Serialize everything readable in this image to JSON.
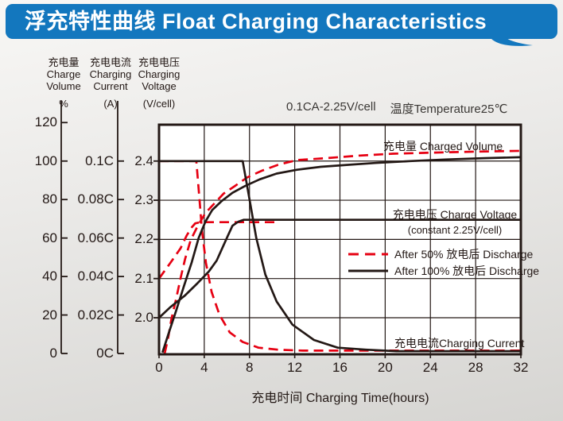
{
  "header": {
    "title": "浮充特性曲线 Float Charging Characteristics"
  },
  "colors": {
    "blue": "#1377be",
    "red": "#e60012",
    "black": "#231815",
    "plot_bg": "#ffffff"
  },
  "axes_panel": {
    "volume": {
      "lines": [
        "充电量",
        "Charge",
        "Volume"
      ],
      "unit": "%",
      "ticks": [
        "120",
        "100",
        "80",
        "60",
        "40",
        "20",
        "0"
      ]
    },
    "current": {
      "lines": [
        "充电电流",
        "Charging",
        "Current"
      ],
      "unit": "(A)",
      "ticks": [
        "0.1C",
        "0.08C",
        "0.06C",
        "0.04C",
        "0.02C",
        "0C"
      ]
    },
    "voltage": {
      "lines": [
        "充电电压",
        "Charging",
        "Voltage"
      ],
      "unit": "(V/cell)",
      "ticks": [
        "2.4",
        "2.3",
        "2.2",
        "2.1",
        "2.0"
      ]
    }
  },
  "chart_data": {
    "type": "line",
    "title": "浮充特性曲线 Float Charging Characteristics",
    "condition": "0.1CA-2.25V/cell",
    "temperature": "温度Temperature25℃",
    "xlabel": "充电时间 Charging Time(hours)",
    "xlim": [
      0,
      32
    ],
    "x_ticks": [
      0,
      4,
      8,
      12,
      16,
      20,
      24,
      28,
      32
    ],
    "grid": true,
    "axes": {
      "volume": {
        "label": "充电量 Charge Volume",
        "unit": "%",
        "range": [
          0,
          120
        ],
        "tick_step": 20
      },
      "current": {
        "label": "充电电流 Charging Current",
        "unit": "CA",
        "range": [
          0,
          0.1
        ],
        "tick_step": 0.02
      },
      "voltage": {
        "label": "充电电压 Charging Voltage",
        "unit": "V/cell",
        "range": [
          2.0,
          2.4
        ],
        "tick_step": 0.1
      }
    },
    "annotations": {
      "charged_volume": "充电量 Charged Volume",
      "charge_voltage": "充电电压 Charge Voltage",
      "charge_voltage_sub": "(constant 2.25V/cell)",
      "charging_current": "充电电流Charging Current"
    },
    "legend": [
      {
        "label": "After 50%  放电后 Discharge",
        "style": "dashed",
        "color": "#e60012"
      },
      {
        "label": "After 100%  放电后 Discharge",
        "style": "solid",
        "color": "#231815"
      }
    ],
    "series": [
      {
        "name": "charge-voltage-after-50",
        "axis": "voltage",
        "color": "#e60012",
        "dashed": true,
        "points": [
          [
            0,
            2.1
          ],
          [
            1,
            2.14
          ],
          [
            1.9,
            2.177
          ],
          [
            2.45,
            2.21
          ],
          [
            2.9,
            2.231
          ],
          [
            3.2,
            2.241
          ],
          [
            3.65,
            2.244
          ],
          [
            10.5,
            2.244
          ]
        ]
      },
      {
        "name": "charged-volume-after-50",
        "axis": "volume",
        "color": "#e60012",
        "dashed": true,
        "points": [
          [
            0.5,
            0
          ],
          [
            0.8,
            8
          ],
          [
            1.1,
            18
          ],
          [
            1.5,
            28
          ],
          [
            1.9,
            39
          ],
          [
            2.3,
            49
          ],
          [
            2.8,
            59
          ],
          [
            3.4,
            66
          ],
          [
            4.1,
            73
          ],
          [
            4.9,
            78
          ],
          [
            5.7,
            83
          ],
          [
            6.7,
            87
          ],
          [
            7.8,
            91.5
          ],
          [
            9.1,
            95
          ],
          [
            10.5,
            98
          ],
          [
            12.2,
            100.5
          ],
          [
            14.8,
            101.5
          ],
          [
            17.6,
            102.8
          ],
          [
            20.7,
            103.8
          ],
          [
            24.3,
            104.4
          ],
          [
            28,
            104.9
          ],
          [
            32,
            105.3
          ]
        ]
      },
      {
        "name": "charging-current-after-50",
        "axis": "current",
        "color": "#e60012",
        "dashed": true,
        "points": [
          [
            0,
            0.1
          ],
          [
            3.3,
            0.1
          ],
          [
            3.55,
            0.082
          ],
          [
            3.8,
            0.064
          ],
          [
            4.15,
            0.047
          ],
          [
            4.65,
            0.032
          ],
          [
            5.35,
            0.02
          ],
          [
            6.25,
            0.011
          ],
          [
            7.4,
            0.006
          ],
          [
            8.8,
            0.003
          ],
          [
            10.5,
            0.002
          ],
          [
            12.7,
            0.0015
          ],
          [
            32,
            0.0015
          ]
        ]
      },
      {
        "name": "charge-voltage-after-100",
        "axis": "voltage",
        "color": "#231815",
        "dashed": false,
        "points": [
          [
            0,
            2.0
          ],
          [
            1,
            2.027
          ],
          [
            2.3,
            2.057
          ],
          [
            3.4,
            2.088
          ],
          [
            4.4,
            2.118
          ],
          [
            5.1,
            2.146
          ],
          [
            5.6,
            2.178
          ],
          [
            6.1,
            2.21
          ],
          [
            6.5,
            2.235
          ],
          [
            7,
            2.245
          ],
          [
            7.5,
            2.25
          ],
          [
            32,
            2.25
          ]
        ]
      },
      {
        "name": "charged-volume-after-100",
        "axis": "volume",
        "color": "#231815",
        "dashed": false,
        "points": [
          [
            0.3,
            0.5
          ],
          [
            0.85,
            10.5
          ],
          [
            1.5,
            22
          ],
          [
            2.2,
            35
          ],
          [
            2.9,
            47.5
          ],
          [
            3.5,
            60
          ],
          [
            4.1,
            68.5
          ],
          [
            4.7,
            74.5
          ],
          [
            5.5,
            79
          ],
          [
            6.5,
            83.5
          ],
          [
            7.6,
            87
          ],
          [
            8.9,
            90.5
          ],
          [
            10.4,
            93.5
          ],
          [
            12.2,
            95.5
          ],
          [
            14.3,
            97
          ],
          [
            16.6,
            98
          ],
          [
            19.1,
            99
          ],
          [
            22.2,
            100
          ],
          [
            25.3,
            100.8
          ],
          [
            28.8,
            101.5
          ],
          [
            32,
            102
          ]
        ]
      },
      {
        "name": "charging-current-after-100",
        "axis": "current",
        "color": "#231815",
        "dashed": false,
        "points": [
          [
            0,
            0.1
          ],
          [
            7.4,
            0.1
          ],
          [
            8,
            0.08
          ],
          [
            8.6,
            0.06
          ],
          [
            9.4,
            0.041
          ],
          [
            10.4,
            0.027
          ],
          [
            11.8,
            0.015
          ],
          [
            13.7,
            0.007
          ],
          [
            15.8,
            0.003
          ],
          [
            18.3,
            0.002
          ],
          [
            21,
            0.0012
          ],
          [
            32,
            0.0012
          ]
        ]
      }
    ]
  }
}
